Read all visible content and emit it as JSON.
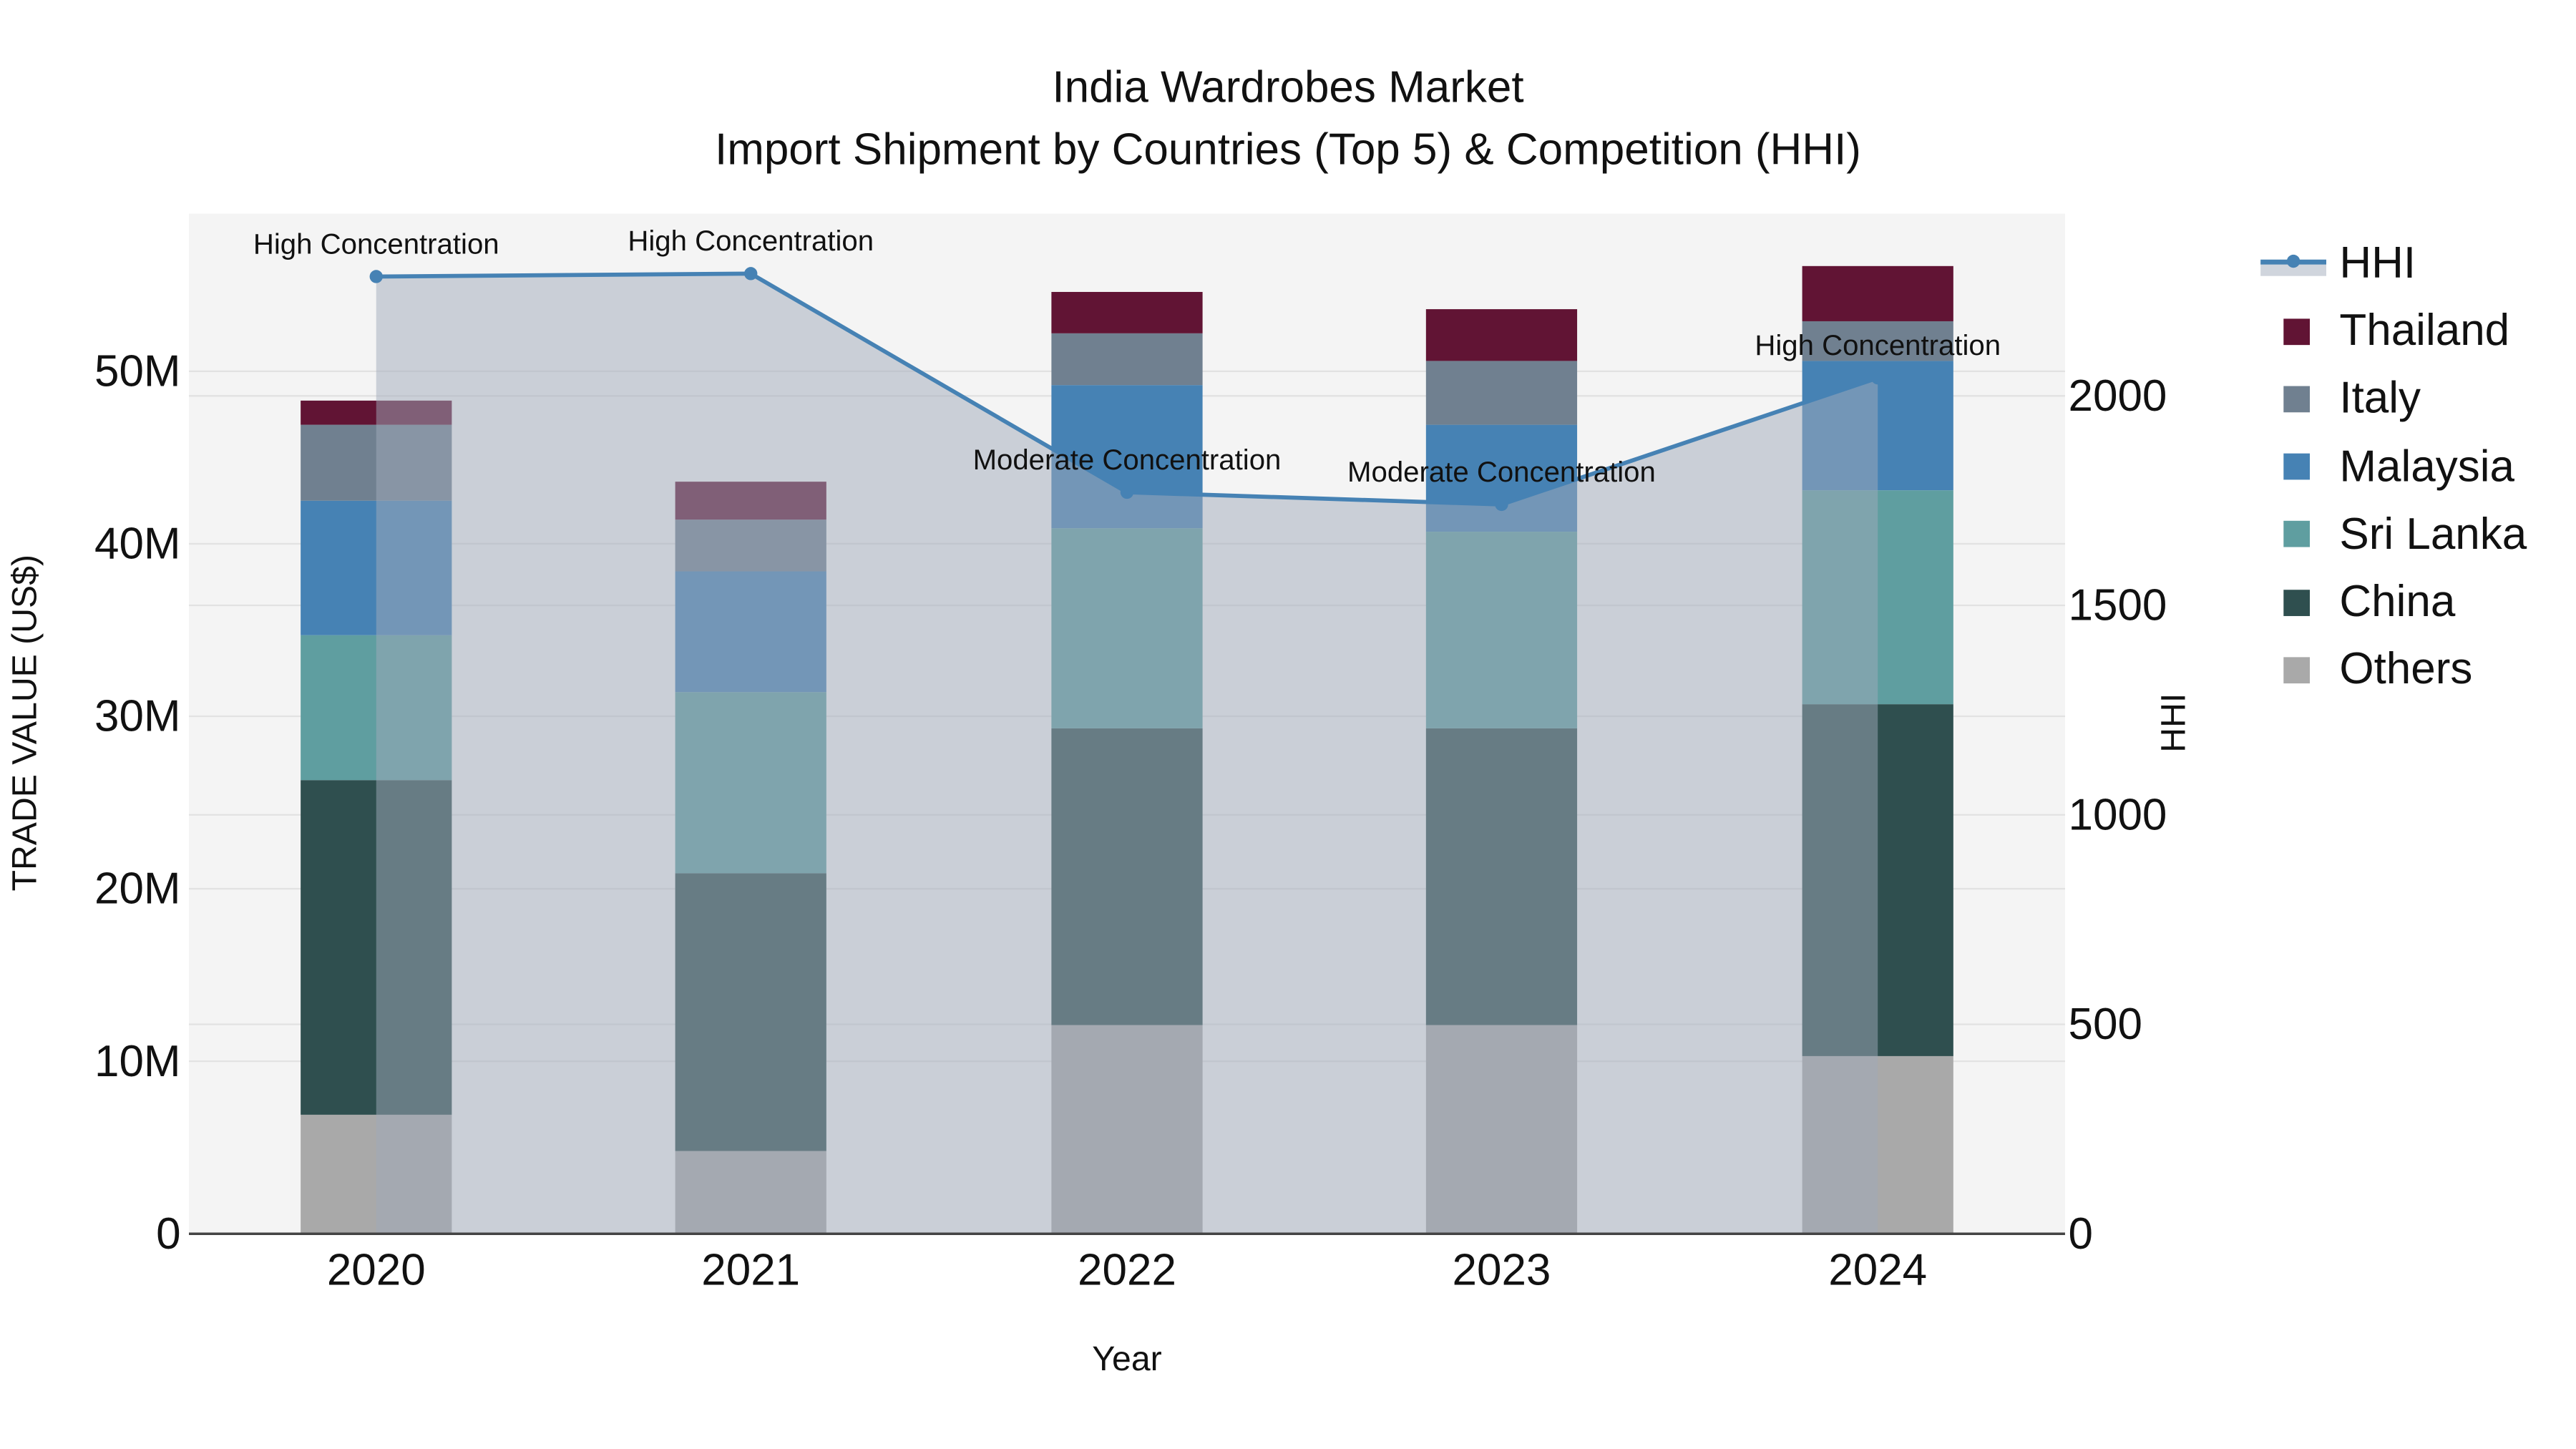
{
  "title": {
    "line1": "India Wardrobes Market",
    "line2": "Import Shipment by Countries (Top 5) & Competition (HHI)"
  },
  "axes": {
    "x_label": "Year",
    "y_left_label": "TRADE VALUE (US$)",
    "y_right_label": "HHI",
    "y_left_ticks": [
      "0",
      "10M",
      "20M",
      "30M",
      "40M",
      "50M"
    ],
    "y_right_ticks": [
      "0",
      "500",
      "1000",
      "1500",
      "2000"
    ]
  },
  "legend": [
    {
      "label": "HHI",
      "type": "line",
      "color": "#4682b4"
    },
    {
      "label": "Thailand",
      "type": "bar",
      "color": "#611434"
    },
    {
      "label": "Italy",
      "type": "bar",
      "color": "#708090"
    },
    {
      "label": "Malaysia",
      "type": "bar",
      "color": "#4682b4"
    },
    {
      "label": "Sri Lanka",
      "type": "bar",
      "color": "#5f9ea0"
    },
    {
      "label": "China",
      "type": "bar",
      "color": "#2f4f4f"
    },
    {
      "label": "Others",
      "type": "bar",
      "color": "#a9a9a9"
    }
  ],
  "annotations": [
    {
      "year": "2020",
      "text": "High Concentration"
    },
    {
      "year": "2021",
      "text": "High Concentration"
    },
    {
      "year": "2022",
      "text": "Moderate Concentration"
    },
    {
      "year": "2023",
      "text": "Moderate Concentration"
    },
    {
      "year": "2024",
      "text": "High Concentration"
    }
  ],
  "colors": {
    "plot_bg": "#f4f4f4",
    "grid": "#e2e2e2",
    "hhi_line": "#4682b4",
    "hhi_fill": "rgba(160,170,185,0.5)"
  },
  "chart_data": {
    "type": "bar",
    "title": "India Wardrobes Market — Import Shipment by Countries (Top 5) & Competition (HHI)",
    "xlabel": "Year",
    "ylabel": "TRADE VALUE (US$)",
    "y2label": "HHI",
    "categories": [
      "2020",
      "2021",
      "2022",
      "2023",
      "2024"
    ],
    "stacked": true,
    "units": "US$ millions",
    "ylim": [
      0,
      59
    ],
    "y2lim": [
      0,
      2435
    ],
    "series": [
      {
        "name": "Others",
        "color": "#a9a9a9",
        "values": [
          6.9,
          4.8,
          12.1,
          12.1,
          10.3
        ]
      },
      {
        "name": "China",
        "color": "#2f4f4f",
        "values": [
          19.4,
          16.1,
          17.2,
          17.2,
          20.4
        ]
      },
      {
        "name": "Sri Lanka",
        "color": "#5f9ea0",
        "values": [
          8.4,
          10.5,
          11.6,
          11.4,
          12.4
        ]
      },
      {
        "name": "Malaysia",
        "color": "#4682b4",
        "values": [
          7.8,
          7.0,
          8.3,
          6.2,
          7.5
        ]
      },
      {
        "name": "Italy",
        "color": "#708090",
        "values": [
          4.4,
          3.0,
          3.0,
          3.7,
          2.3
        ]
      },
      {
        "name": "Thailand",
        "color": "#611434",
        "values": [
          1.4,
          2.2,
          2.4,
          3.0,
          3.2
        ]
      }
    ],
    "line_series": {
      "name": "HHI",
      "axis": "right",
      "color": "#4682b4",
      "fill": "tozeroy",
      "values": [
        2285,
        2292,
        1770,
        1741,
        2043
      ]
    },
    "annotations": [
      "High Concentration",
      "High Concentration",
      "Moderate Concentration",
      "Moderate Concentration",
      "High Concentration"
    ],
    "legend_position": "right",
    "grid": true
  }
}
